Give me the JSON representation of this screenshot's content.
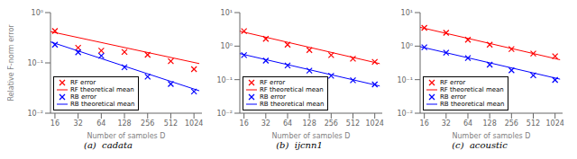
{
  "chart_data": [
    {
      "type": "scatter",
      "title": "(a)  cadata",
      "xlabel": "Number of samples D",
      "ylabel": "Relative F-norm error",
      "log": true,
      "legend": "lower left",
      "x": [
        16,
        32,
        64,
        128,
        256,
        512,
        1024
      ],
      "xlim": [
        14,
        1300
      ],
      "xticks": [
        16,
        32,
        64,
        128,
        256,
        512,
        1024
      ],
      "ylim": [
        0.01,
        1.0
      ],
      "yticks": [
        {
          "value": 0.01,
          "label": "10⁻²"
        },
        {
          "value": 0.1,
          "label": "10⁻¹"
        },
        {
          "value": 1,
          "label": "10⁰"
        }
      ],
      "series": [
        {
          "name": "RF error",
          "type": "scatter",
          "marker": "x",
          "color": "#FF0000",
          "values": [
            0.43,
            0.2,
            0.175,
            0.165,
            0.145,
            0.108,
            0.075
          ]
        },
        {
          "name": "RF theoretical mean",
          "type": "line",
          "color": "#FF0000",
          "x": [
            14,
            1200
          ],
          "values": [
            0.4187,
            0.09681
          ]
        },
        {
          "name": "RB error",
          "type": "scatter",
          "marker": "x",
          "color": "#0000FF",
          "values": [
            0.23,
            0.162,
            0.138,
            0.082,
            0.053,
            0.038,
            0.027
          ]
        },
        {
          "name": "RB theoretical mean",
          "type": "line",
          "color": "#0000FF",
          "x": [
            14,
            1200
          ],
          "values": [
            0.2619,
            0.02789
          ]
        }
      ]
    },
    {
      "type": "scatter",
      "title": "(b)  ijcnn1",
      "xlabel": "Number of samples D",
      "log": true,
      "legend": "lower left",
      "x": [
        16,
        32,
        64,
        128,
        256,
        512,
        1024
      ],
      "xlim": [
        14,
        1300
      ],
      "xticks": [
        16,
        32,
        64,
        128,
        256,
        512,
        1024
      ],
      "ylim": [
        0.01,
        10.0
      ],
      "yticks": [
        {
          "value": 0.01,
          "label": "10⁻²"
        },
        {
          "value": 0.1,
          "label": "10⁻¹"
        },
        {
          "value": 1,
          "label": "10⁰"
        },
        {
          "value": 10,
          "label": "10¹"
        }
      ],
      "series": [
        {
          "name": "RF error",
          "type": "scatter",
          "marker": "x",
          "color": "#FF0000",
          "values": [
            2.8,
            1.65,
            1.1,
            0.76,
            0.54,
            0.42,
            0.34
          ]
        },
        {
          "name": "RF theoretical mean",
          "type": "line",
          "color": "#FF0000",
          "x": [
            14,
            1200
          ],
          "values": [
            2.786,
            0.3002
          ]
        },
        {
          "name": "RB error",
          "type": "scatter",
          "marker": "x",
          "color": "#0000FF",
          "values": [
            0.54,
            0.37,
            0.265,
            0.185,
            0.13,
            0.096,
            0.072
          ]
        },
        {
          "name": "RB theoretical mean",
          "type": "line",
          "color": "#0000FF",
          "x": [
            14,
            1200
          ],
          "values": [
            0.5981,
            0.06468
          ]
        }
      ]
    },
    {
      "type": "scatter",
      "title": "(c)  acoustic",
      "xlabel": "Number of samples D",
      "log": true,
      "legend": "lower left",
      "x": [
        16,
        32,
        64,
        128,
        256,
        512,
        1024
      ],
      "xlim": [
        14,
        1300
      ],
      "xticks": [
        16,
        32,
        64,
        128,
        256,
        512,
        1024
      ],
      "ylim": [
        0.01,
        10.0
      ],
      "yticks": [
        {
          "value": 0.01,
          "label": "10⁻²"
        },
        {
          "value": 0.1,
          "label": "10⁻¹"
        },
        {
          "value": 1,
          "label": "10⁰"
        },
        {
          "value": 10,
          "label": "10¹"
        }
      ],
      "series": [
        {
          "name": "RF error",
          "type": "scatter",
          "marker": "x",
          "color": "#FF0000",
          "values": [
            3.5,
            2.5,
            1.55,
            1.1,
            0.82,
            0.6,
            0.5
          ]
        },
        {
          "name": "RF theoretical mean",
          "type": "line",
          "color": "#FF0000",
          "x": [
            14,
            1200
          ],
          "values": [
            3.632,
            0.3923
          ]
        },
        {
          "name": "RB error",
          "type": "scatter",
          "marker": "x",
          "color": "#0000FF",
          "values": [
            0.92,
            0.64,
            0.44,
            0.28,
            0.19,
            0.135,
            0.098
          ]
        },
        {
          "name": "RB theoretical mean",
          "type": "line",
          "color": "#0000FF",
          "x": [
            14,
            1200
          ],
          "values": [
            0.961,
            0.1033
          ]
        }
      ]
    }
  ]
}
